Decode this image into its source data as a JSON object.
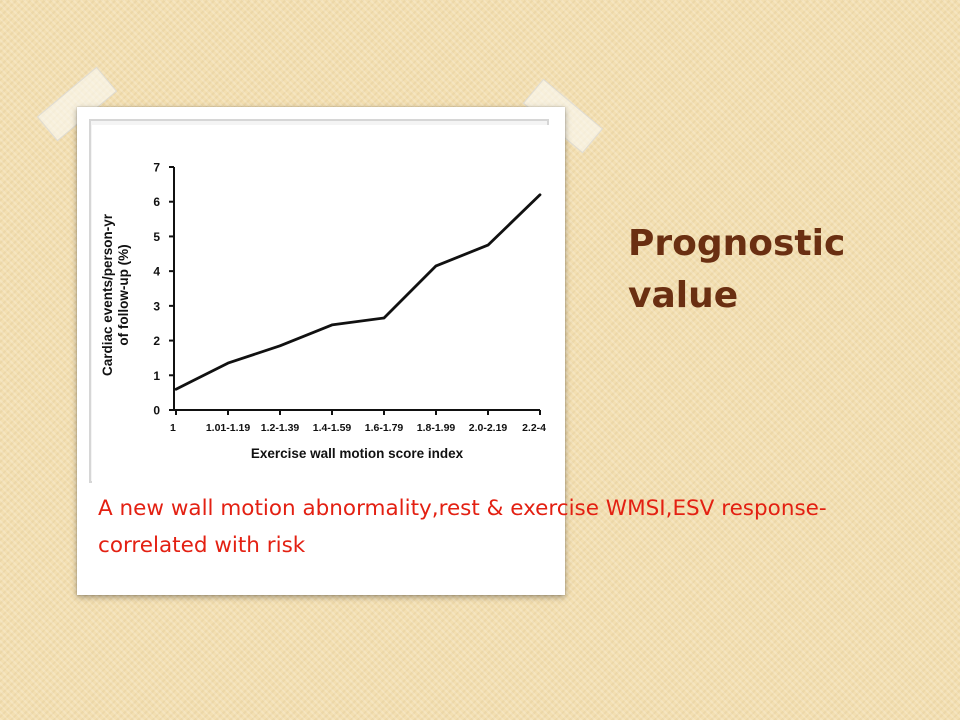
{
  "slide": {
    "title": "Prognostic value",
    "caption": "A new wall motion abnormality,rest & exercise WMSI,ESV response-correlated with risk"
  },
  "colors": {
    "title": "#6a2f12",
    "caption": "#e32012",
    "background": "#f3dfb1"
  },
  "chart_data": {
    "type": "line",
    "title": "",
    "xlabel": "Exercise wall motion score index",
    "ylabel": "Cardiac events/person-yr of follow-up (%)",
    "ylabel_lines": [
      "Cardiac events/person-yr",
      "of follow-up (%)"
    ],
    "categories": [
      "1",
      "1.01-1.19",
      "1.2-1.39",
      "1.4-1.59",
      "1.6-1.79",
      "1.8-1.99",
      "2.0-2.19",
      "2.2-4"
    ],
    "values": [
      0.6,
      1.35,
      1.85,
      2.45,
      2.65,
      4.15,
      4.75,
      6.2
    ],
    "ylim": [
      0,
      7
    ],
    "yticks": [
      0,
      1,
      2,
      3,
      4,
      5,
      6,
      7
    ],
    "grid": false,
    "legend": "none"
  }
}
